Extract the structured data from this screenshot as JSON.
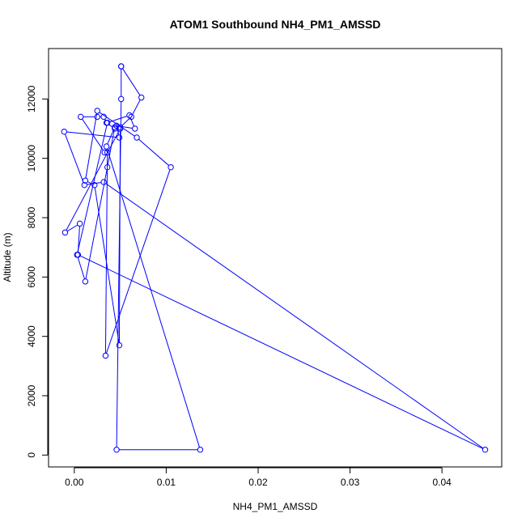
{
  "chart_data": {
    "type": "line",
    "title": "ATOM1 Southbound NH4_PM1_AMSSD",
    "xlabel": "NH4_PM1_AMSSD",
    "ylabel": "Altitude (m)",
    "xlim": [
      -0.0028,
      0.0465
    ],
    "ylim": [
      -400,
      13700
    ],
    "x_ticks": [
      0.0,
      0.01,
      0.02,
      0.03,
      0.04
    ],
    "x_tick_labels": [
      "0.00",
      "0.01",
      "0.02",
      "0.03",
      "0.04"
    ],
    "y_ticks": [
      0,
      2000,
      4000,
      6000,
      8000,
      10000,
      12000
    ],
    "y_tick_labels": [
      "0",
      "2000",
      "4000",
      "6000",
      "8000",
      "10000",
      "12000"
    ],
    "grid": false,
    "legend": "none",
    "marker": "open-circle",
    "series": [
      {
        "color": "#0000ff",
        "x": [
          0.0051,
          0.0051,
          0.0046,
          0.0137,
          0.0035,
          0.0044,
          0.0036,
          0.0012,
          0.0003,
          0.0036,
          0.006,
          0.0066,
          0.0046,
          0.0049,
          -0.0011,
          0.0011,
          0.0032,
          0.0447,
          0.0004,
          0.0006,
          -0.001,
          0.005,
          0.0049,
          0.0022,
          0.0012,
          0.0025,
          0.0068,
          0.0105,
          0.0034,
          0.0036,
          0.0033,
          0.0007,
          0.0025,
          0.0032,
          0.0035,
          0.0044,
          0.005,
          0.0062,
          0.0073,
          0.0051
        ],
        "y": [
          13100,
          12000,
          180,
          180,
          10400,
          11050,
          9700,
          5850,
          6750,
          11200,
          11450,
          11000,
          11100,
          10700,
          10900,
          9100,
          9200,
          180,
          6750,
          7800,
          7500,
          11000,
          3700,
          9100,
          9250,
          11600,
          10700,
          9700,
          3350,
          10200,
          10200,
          11400,
          11400,
          11400,
          11200,
          11000,
          11050,
          11400,
          12050,
          13100
        ]
      }
    ]
  }
}
